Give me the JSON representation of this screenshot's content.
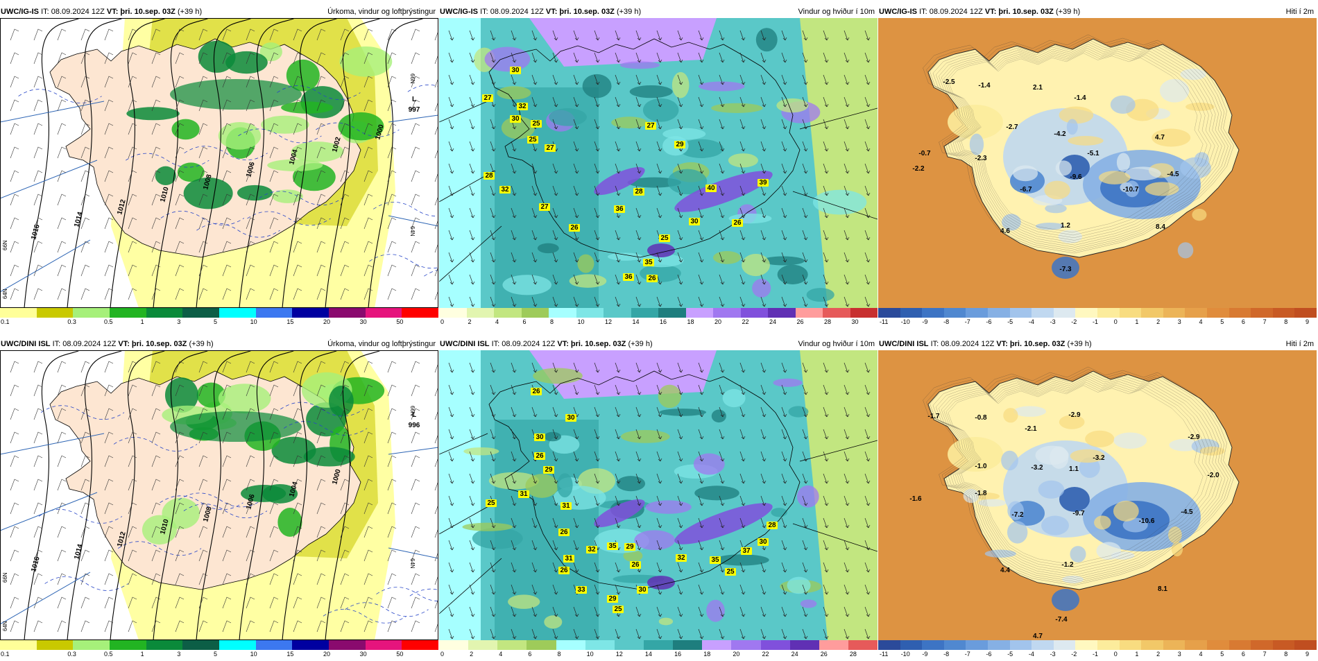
{
  "rows": [
    {
      "model": "UWC/IG-IS",
      "panels": [
        {
          "type": "precip",
          "header_left": {
            "model": "UWC/IG-IS",
            "it": "IT: 08.09.2024 12Z",
            "vt_label": "VT:",
            "vt": "þri. 10.sep. 03Z",
            "lead": "(+39 h)"
          },
          "header_right": "Úrkoma, vindur og loftþrýstingur",
          "low_label": "L",
          "low_value": "997",
          "isobars": [
            "1016",
            "1014",
            "1012",
            "1010",
            "1008",
            "1006",
            "1004",
            "1002",
            "1000"
          ],
          "lat_labels": [
            "66N",
            "64N",
            "66N",
            "64N"
          ]
        },
        {
          "type": "wind",
          "header_left": {
            "model": "UWC/IG-IS",
            "it": "IT: 08.09.2024 12Z",
            "vt_label": "VT:",
            "vt": "þri. 10.sep. 03Z",
            "lead": "(+39 h)"
          },
          "header_right": "Vindur og hviður í 10m",
          "gusts": [
            "30",
            "27",
            "32",
            "30",
            "25",
            "25",
            "27",
            "28",
            "32",
            "27",
            "36",
            "28",
            "26",
            "25",
            "27",
            "29",
            "40",
            "39",
            "26",
            "30",
            "35",
            "36",
            "26"
          ]
        },
        {
          "type": "temp",
          "header_left": {
            "model": "UWC/IG-IS",
            "it": "IT: 08.09.2024 12Z",
            "vt_label": "VT:",
            "vt": "þri. 10.sep. 03Z",
            "lead": "(+39 h)"
          },
          "header_right": "Hiti í 2m",
          "temps": [
            "-2.5",
            "-1.4",
            "2.1",
            "-1.4",
            "-2.7",
            "-4.2",
            "-0.7",
            "-2.3",
            "-5.1",
            "4.7",
            "-2.2",
            "-6.7",
            "-9.6",
            "-4.5",
            "-10.7",
            "1.2",
            "4.6",
            "8.4",
            "-7.3"
          ]
        }
      ]
    },
    {
      "model": "UWC/DINI ISL",
      "panels": [
        {
          "type": "precip",
          "header_left": {
            "model": "UWC/DINI ISL",
            "it": "IT: 08.09.2024 12Z",
            "vt_label": "VT:",
            "vt": "þri. 10.sep. 03Z",
            "lead": "(+39 h)"
          },
          "header_right": "Úrkoma, vindur og loftþrýstingur",
          "low_label": "L",
          "low_value": "996",
          "isobars": [
            "1016",
            "1014",
            "1012",
            "1010",
            "1008",
            "1006",
            "1004",
            "1000"
          ],
          "lat_labels": [
            "66N",
            "64N",
            "66N",
            "64N"
          ]
        },
        {
          "type": "wind",
          "header_left": {
            "model": "UWC/DINI ISL",
            "it": "IT: 08.09.2024 12Z",
            "vt_label": "VT:",
            "vt": "þri. 10.sep. 03Z",
            "lead": "(+39 h)"
          },
          "header_right": "Vindur og hviður í 10m",
          "gusts": [
            "26",
            "30",
            "30",
            "26",
            "29",
            "31",
            "25",
            "31",
            "26",
            "32",
            "35",
            "31",
            "29",
            "26",
            "26",
            "33",
            "30",
            "29",
            "25",
            "32",
            "35",
            "25",
            "37",
            "30",
            "28"
          ]
        },
        {
          "type": "temp",
          "header_left": {
            "model": "UWC/DINI ISL",
            "it": "IT: 08.09.2024 12Z",
            "vt_label": "VT:",
            "vt": "þri. 10.sep. 03Z",
            "lead": "(+39 h)"
          },
          "header_right": "Hiti í 2m",
          "temps": [
            "-1.7",
            "-0.8",
            "-2.1",
            "-2.9",
            "-2.9",
            "-1.0",
            "-3.2",
            "1.1",
            "-3.2",
            "-2.0",
            "-1.6",
            "-1.8",
            "-7.2",
            "-9.7",
            "-10.6",
            "-4.5",
            "-1.2",
            "4.4",
            "8.1",
            "-7.4",
            "4.7"
          ]
        }
      ]
    }
  ],
  "legends": {
    "precip": {
      "colors": [
        "#ffff99",
        "#c9c900",
        "#a6f07a",
        "#22b422",
        "#0a8a3a",
        "#0c5e46",
        "#00ffff",
        "#3c78f0",
        "#0000a0",
        "#8a0a6e",
        "#e6147d",
        "#ff0000"
      ],
      "ticks": [
        "0.1",
        "0.3",
        "0.5",
        "1",
        "3",
        "5",
        "10",
        "15",
        "20",
        "30",
        "50"
      ]
    },
    "wind_top": {
      "colors": [
        "#ffffe0",
        "#e2f5b0",
        "#c2e680",
        "#9ecb5a",
        "#a6ffff",
        "#7ee6e6",
        "#5ac8c8",
        "#34a6a6",
        "#1e7e7e",
        "#c8a0ff",
        "#a078f0",
        "#8050dc",
        "#6030b4",
        "#ff9c9c",
        "#e65a5a",
        "#c83030"
      ],
      "ticks": [
        "0",
        "2",
        "4",
        "6",
        "8",
        "10",
        "12",
        "14",
        "16",
        "18",
        "20",
        "22",
        "24",
        "26",
        "28",
        "30"
      ]
    },
    "wind_bottom": {
      "colors": [
        "#ffffe0",
        "#e2f5b0",
        "#c2e680",
        "#9ecb5a",
        "#a6ffff",
        "#7ee6e6",
        "#5ac8c8",
        "#34a6a6",
        "#1e7e7e",
        "#c8a0ff",
        "#a078f0",
        "#8050dc",
        "#6030b4",
        "#ff9c9c",
        "#e65a5a"
      ],
      "ticks": [
        "0",
        "2",
        "4",
        "6",
        "8",
        "10",
        "12",
        "14",
        "16",
        "18",
        "20",
        "22",
        "24",
        "26",
        "28"
      ]
    },
    "temp": {
      "colors": [
        "#2b4a9a",
        "#2f5fb0",
        "#3d74c4",
        "#5088d0",
        "#6a9cdc",
        "#86b0e4",
        "#a2c4ec",
        "#c0d8f0",
        "#dde9f0",
        "#fff8c0",
        "#fcec9c",
        "#f8dc80",
        "#f2c868",
        "#ecb458",
        "#e6a04a",
        "#e08c3c",
        "#d87a32",
        "#d0682a",
        "#c85a24",
        "#c04e20"
      ],
      "ticks": [
        "-11",
        "-10",
        "-9",
        "-8",
        "-7",
        "-6",
        "-5",
        "-4",
        "-3",
        "-2",
        "-1",
        "0",
        "1",
        "2",
        "3",
        "4",
        "5",
        "6",
        "7",
        "8",
        "9"
      ]
    }
  }
}
